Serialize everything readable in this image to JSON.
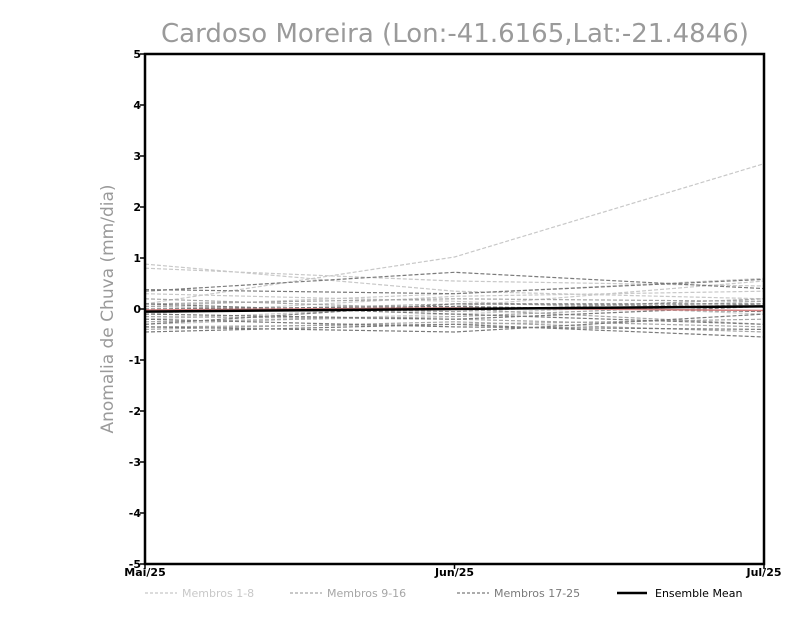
{
  "chart_data": {
    "type": "line",
    "title": "Cardoso Moreira (Lon:-41.6165,Lat:-21.4846)",
    "xlabel": "",
    "ylabel": "Anomalia de Chuva (mm/dia)",
    "x": [
      "Mai/25",
      "Jun/25",
      "Jul/25"
    ],
    "ylim": [
      -5,
      5
    ],
    "yticks": [
      -5,
      -4,
      -3,
      -2,
      -1,
      0,
      1,
      2,
      3,
      4,
      5
    ],
    "series_groups": [
      {
        "name": "Membros 1-8",
        "color": "#c8c8c8",
        "series": [
          [
            0.88,
            0.35,
            0.2
          ],
          [
            0.8,
            0.55,
            0.45
          ],
          [
            0.1,
            1.02,
            2.85
          ],
          [
            -0.2,
            0.05,
            0.55
          ],
          [
            0.05,
            0.3,
            0.6
          ],
          [
            -0.3,
            -0.1,
            0.15
          ],
          [
            0.3,
            0.15,
            -0.1
          ],
          [
            -0.1,
            0.25,
            0.35
          ]
        ]
      },
      {
        "name": "Membros 9-16",
        "color": "#a6a6a6",
        "series": [
          [
            -0.05,
            0.1,
            0.05
          ],
          [
            0.1,
            0.2,
            0.15
          ],
          [
            -0.25,
            -0.15,
            0.1
          ],
          [
            -0.35,
            -0.3,
            -0.2
          ],
          [
            0.2,
            0.0,
            -0.3
          ],
          [
            -0.15,
            -0.2,
            -0.35
          ],
          [
            0.05,
            -0.05,
            0.2
          ],
          [
            -0.4,
            -0.25,
            -0.45
          ]
        ]
      },
      {
        "name": "Membros 17-25",
        "color": "#7a7a7a",
        "series": [
          [
            0.35,
            0.72,
            0.4
          ],
          [
            0.38,
            0.3,
            0.58
          ],
          [
            -0.3,
            0.1,
            0.1
          ],
          [
            -0.45,
            -0.3,
            -0.55
          ],
          [
            0.0,
            0.05,
            -0.05
          ],
          [
            -0.2,
            -0.35,
            -0.4
          ],
          [
            0.1,
            -0.1,
            -0.3
          ],
          [
            -0.35,
            -0.45,
            -0.1
          ],
          [
            -0.1,
            -0.2,
            0.05
          ]
        ]
      }
    ],
    "highlight": {
      "color": "#d98080",
      "values": [
        -0.02,
        0.02,
        -0.03
      ]
    },
    "ensemble_mean": {
      "name": "Ensemble Mean",
      "color": "#000000",
      "values": [
        -0.05,
        0.0,
        0.05
      ]
    },
    "legend": [
      {
        "label": "Membros 1-8",
        "color": "#c8c8c8",
        "style": "dashed"
      },
      {
        "label": "Membros 9-16",
        "color": "#a6a6a6",
        "style": "dashed"
      },
      {
        "label": "Membros 17-25",
        "color": "#7a7a7a",
        "style": "dashed"
      },
      {
        "label": "Ensemble Mean",
        "color": "#000000",
        "style": "solid"
      }
    ],
    "legend_position": "bottom",
    "grid": false
  }
}
